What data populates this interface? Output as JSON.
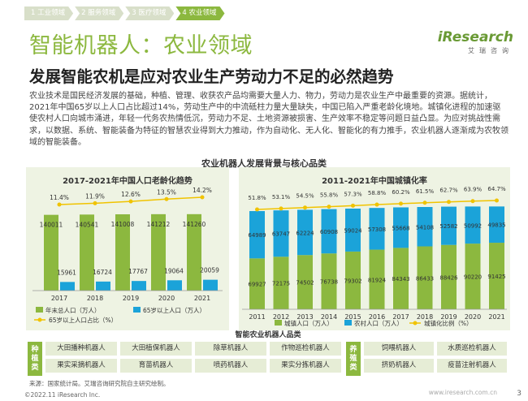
{
  "tabs": [
    {
      "label": "1 工业领域",
      "active": false
    },
    {
      "label": "2 服务领域",
      "active": false
    },
    {
      "label": "3 医疗领域",
      "active": false
    },
    {
      "label": "4 农业领域",
      "active": true
    }
  ],
  "title": "智能机器人：农业领域",
  "logo": {
    "word": "iResearch",
    "cn": "艾瑞咨询"
  },
  "subtitle": "发展智能农机是应对农业生产劳动力不足的必然趋势",
  "body_text": "农业技术是国民经济发展的基础，种植、管理、收获农产品均需要大量人力、物力，劳动力是农业生产中最重要的资源。据统计，2021年中国65岁以上人口占比超过14%，劳动生产中的中流砥柱力量大量缺失，中国已陷入严重老龄化境地。城镇化进程的加速驱使农村人口向城市涌进，年轻一代务农热情低沉，劳动力不足、土地资源被损害、生产效率不稳定等问题日益凸显。为应对挑战性需求，以数据、系统、智能装备为特征的智慧农业得到大力推动，作为自动化、无人化、智能化的有力推手，农业机器人逐渐成为农牧领域的智能装备。",
  "strip_title": "农业机器人发展背景与核心品类",
  "colors": {
    "accent": "#8cb83f",
    "teal": "#1ba3d9",
    "yellow": "#f0c300",
    "panel": "#eef3e3"
  },
  "chart_data": [
    {
      "type": "bar",
      "title": "2017-2021年中国人口老龄化趋势",
      "categories": [
        "2017",
        "2018",
        "2019",
        "2020",
        "2021"
      ],
      "series": [
        {
          "name": "年末总人口（万人）",
          "values": [
            140011,
            140541,
            141008,
            141212,
            141260
          ],
          "color": "#8cb83f"
        },
        {
          "name": "65岁以上人口（万人）",
          "values": [
            15961,
            16724,
            17767,
            19064,
            20059
          ],
          "color": "#1ba3d9"
        },
        {
          "name": "65岁以上人口占比（%）",
          "type": "line",
          "values": [
            11.4,
            11.9,
            12.6,
            13.5,
            14.2
          ],
          "labels": [
            "11.4%",
            "11.9%",
            "12.6%",
            "13.5%",
            "14.2%"
          ],
          "color": "#f0c300"
        }
      ],
      "legend": [
        "年末总人口（万人）",
        "65岁以上人口（万人）",
        "65岁以上人口占比（%）"
      ]
    },
    {
      "type": "bar",
      "stacked": true,
      "title": "2011-2021年中国城镇化率",
      "categories": [
        "2011",
        "2012",
        "2013",
        "2014",
        "2015",
        "2016",
        "2017",
        "2018",
        "2019",
        "2020",
        "2021"
      ],
      "series": [
        {
          "name": "城镇人口（万人）",
          "values": [
            69927,
            72175,
            74502,
            76738,
            79302,
            81924,
            84343,
            86433,
            88426,
            90220,
            91425
          ],
          "color": "#8cb83f"
        },
        {
          "name": "农村人口（万人）",
          "values": [
            64989,
            63747,
            62224,
            60908,
            59024,
            57308,
            55668,
            54108,
            52582,
            50992,
            49835
          ],
          "color": "#1ba3d9"
        },
        {
          "name": "城镇化比例（%）",
          "type": "line",
          "values": [
            51.8,
            53.1,
            54.5,
            55.8,
            57.3,
            58.8,
            60.2,
            61.5,
            62.7,
            63.9,
            64.7
          ],
          "labels": [
            "51.8%",
            "53.1%",
            "54.5%",
            "55.8%",
            "57.3%",
            "58.8%",
            "60.2%",
            "61.5%",
            "62.7%",
            "63.9%",
            "64.7%"
          ],
          "color": "#f0c300"
        }
      ],
      "legend": [
        "城镇人口（万人）",
        "农村人口（万人）",
        "城镇化比例（%）"
      ]
    }
  ],
  "categories": {
    "title": "智能农业机器人品类",
    "planting": {
      "label": "种植类",
      "items": [
        "大田播种机器人",
        "大田植保机器人",
        "除草机器人",
        "作物巡检机器人",
        "果实采摘机器人",
        "育苗机器人",
        "喷药机器人",
        "果实分拣机器人"
      ]
    },
    "breeding": {
      "label": "养殖类",
      "items": [
        "饲喂机器人",
        "水质巡检机器人",
        "挤奶机器人",
        "疫苗注射机器人"
      ]
    }
  },
  "source": "来源：国家统计局。艾瑞咨询研究院自主研究绘制。",
  "footer": "©2022.11 iResearch Inc.",
  "footer_url": "www.iresearch.com.cn",
  "page_number": "3"
}
